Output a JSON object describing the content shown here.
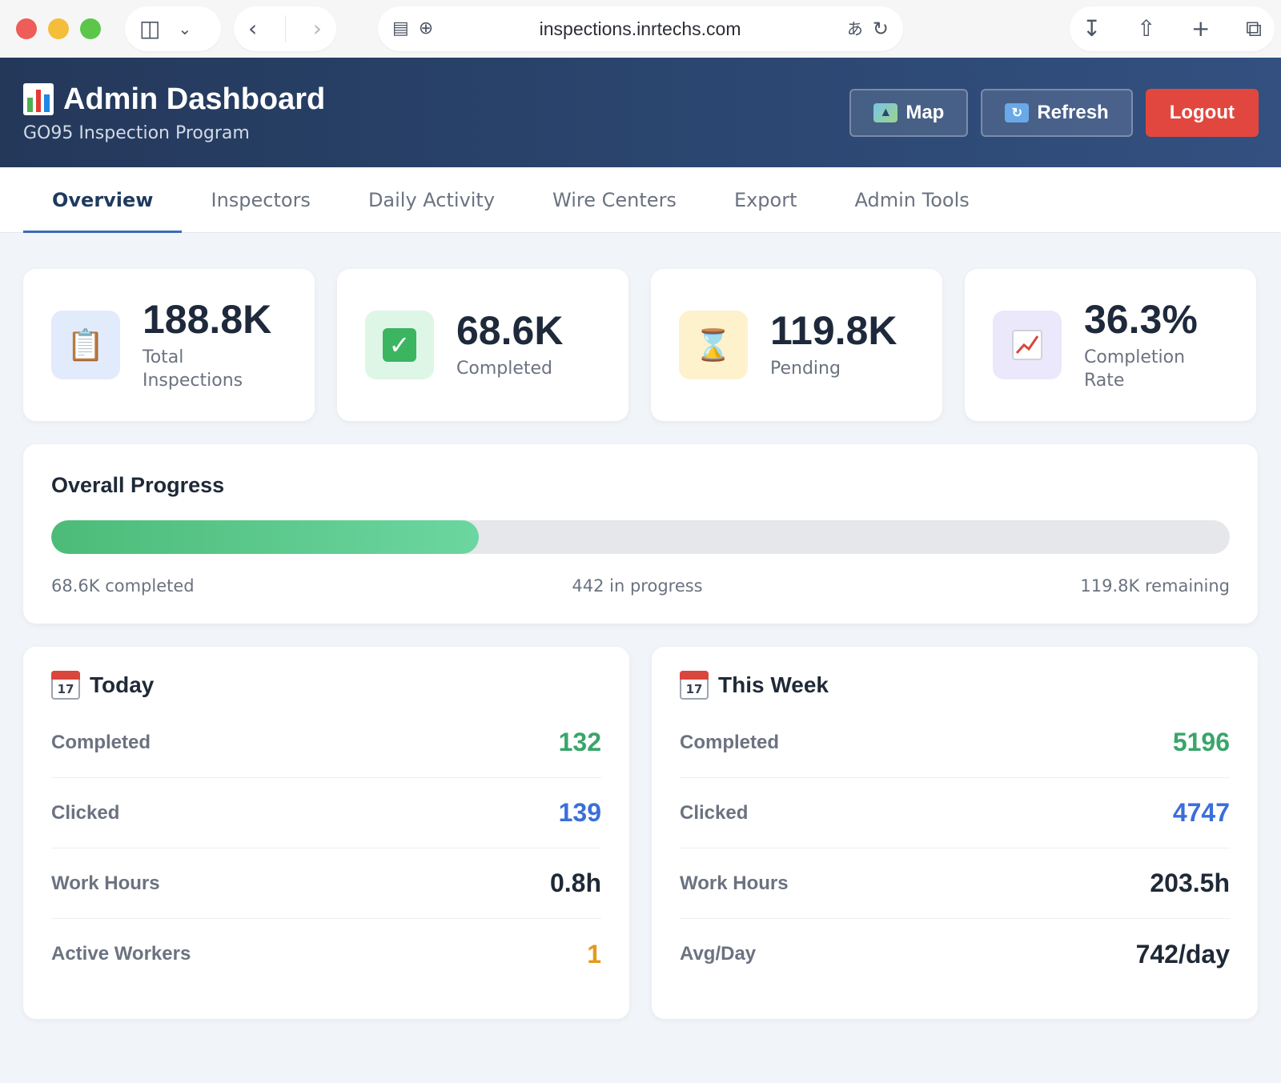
{
  "browser": {
    "url": "inspections.inrtechs.com"
  },
  "header": {
    "title": "Admin Dashboard",
    "subtitle": "GO95 Inspection Program",
    "buttons": {
      "map": "Map",
      "refresh": "Refresh",
      "logout": "Logout"
    },
    "logout_color": "#e2473f"
  },
  "tabs": [
    "Overview",
    "Inspectors",
    "Daily Activity",
    "Wire Centers",
    "Export",
    "Admin Tools"
  ],
  "active_tab": "Overview",
  "stats": [
    {
      "icon": "clipboard-icon",
      "value": "188.8K",
      "label": "Total Inspections"
    },
    {
      "icon": "check-mark-icon",
      "value": "68.6K",
      "label": "Completed"
    },
    {
      "icon": "hourglass-icon",
      "value": "119.8K",
      "label": "Pending"
    },
    {
      "icon": "chart-up-icon",
      "value": "36.3%",
      "label": "Completion Rate"
    }
  ],
  "progress": {
    "title": "Overall Progress",
    "fraction": 0.363,
    "completed": "68.6K completed",
    "in_progress": "442 in progress",
    "remaining": "119.8K remaining",
    "fill_color": "#4cbb78"
  },
  "today": {
    "title": "Today",
    "rows": [
      {
        "label": "Completed",
        "value": "132",
        "color": "#3aa56a"
      },
      {
        "label": "Clicked",
        "value": "139",
        "color": "#3b6fd8"
      },
      {
        "label": "Work Hours",
        "value": "0.8h",
        "color": "#1f2937"
      },
      {
        "label": "Active Workers",
        "value": "1",
        "color": "#e39a1c"
      }
    ]
  },
  "week": {
    "title": "This Week",
    "rows": [
      {
        "label": "Completed",
        "value": "5196",
        "color": "#3aa56a"
      },
      {
        "label": "Clicked",
        "value": "4747",
        "color": "#3b6fd8"
      },
      {
        "label": "Work Hours",
        "value": "203.5h",
        "color": "#1f2937"
      },
      {
        "label": "Avg/Day",
        "value": "742/day",
        "color": "#1f2937"
      }
    ]
  },
  "calendar_day": "17"
}
